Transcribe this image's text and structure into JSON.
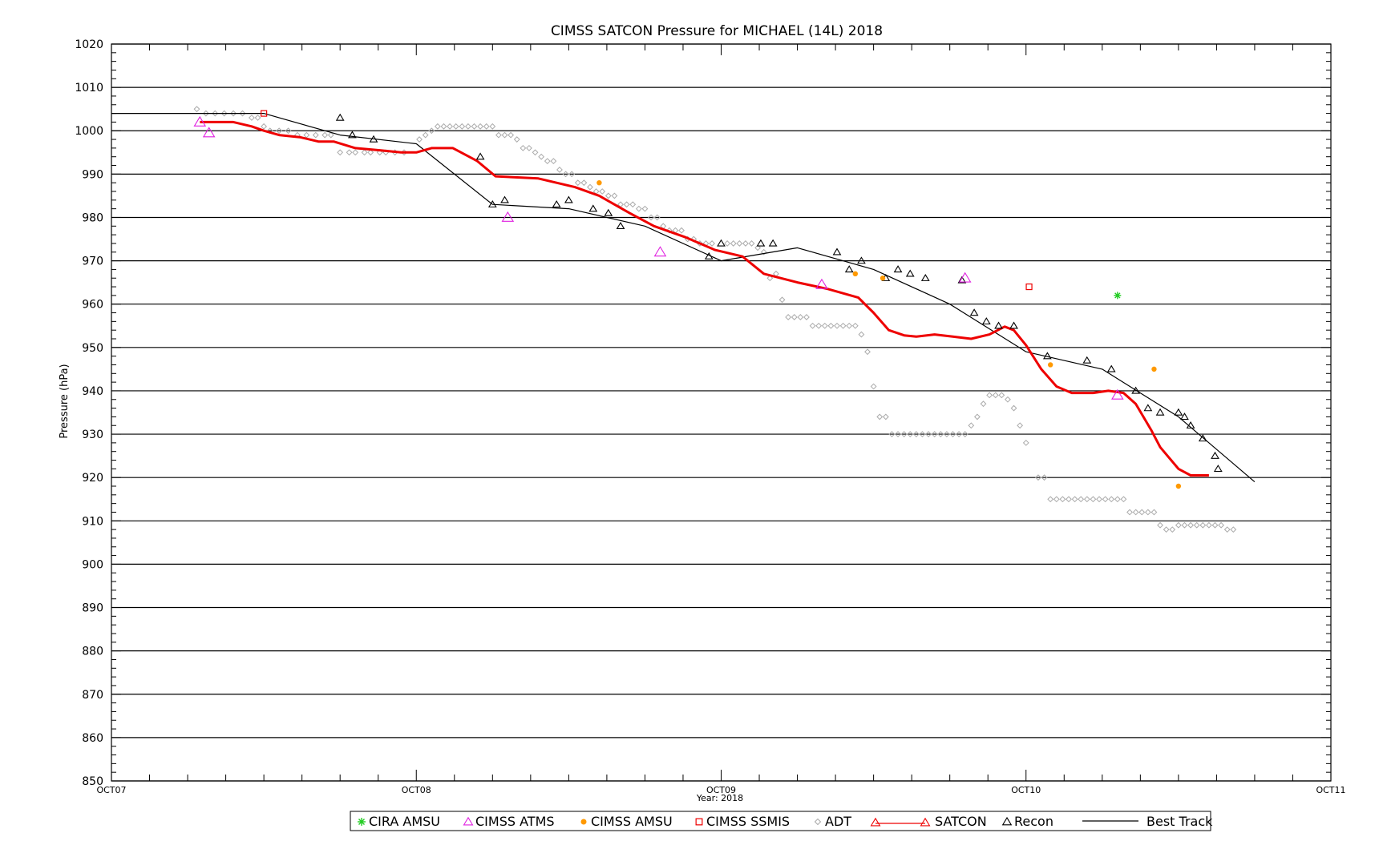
{
  "chart_data": {
    "type": "line",
    "title": "CIMSS SATCON Pressure for MICHAEL (14L) 2018",
    "ylabel": "Pressure (hPa)",
    "xlabel": "Year: 2018",
    "x_units": "days since OCT07 00Z",
    "xlim": [
      0,
      4
    ],
    "ylim": [
      850,
      1020
    ],
    "y_ticks": [
      850,
      860,
      870,
      880,
      890,
      900,
      910,
      920,
      930,
      940,
      950,
      960,
      970,
      980,
      990,
      1000,
      1010,
      1020
    ],
    "x_ticks": [
      {
        "x": 0,
        "label": "OCT07"
      },
      {
        "x": 1,
        "label": "OCT08"
      },
      {
        "x": 2,
        "label": "OCT09"
      },
      {
        "x": 3,
        "label": "OCT10"
      },
      {
        "x": 4,
        "label": "OCT11"
      }
    ],
    "grid": "horizontal",
    "legend_position": "bottom",
    "series": [
      {
        "name": "CIRA AMSU",
        "marker": "asterisk",
        "color": "#22cc22",
        "points": [
          [
            3.3,
            962
          ]
        ]
      },
      {
        "name": "CIMSS ATMS",
        "marker": "triangle",
        "color": "#e020e0",
        "points": [
          [
            0.29,
            1002
          ],
          [
            0.32,
            999.5
          ],
          [
            1.3,
            980
          ],
          [
            1.8,
            972
          ],
          [
            2.33,
            964.5
          ],
          [
            2.8,
            966
          ],
          [
            3.3,
            939
          ]
        ]
      },
      {
        "name": "CIMSS AMSU",
        "marker": "dot",
        "color": "#ff9900",
        "points": [
          [
            1.6,
            988
          ],
          [
            2.44,
            967
          ],
          [
            2.53,
            966
          ],
          [
            3.08,
            946
          ],
          [
            3.42,
            945
          ],
          [
            3.5,
            918
          ]
        ]
      },
      {
        "name": "CIMSS SSMIS",
        "marker": "square",
        "color": "#ee0000",
        "points": [
          [
            0.5,
            1004
          ],
          [
            3.01,
            964
          ]
        ]
      },
      {
        "name": "ADT",
        "marker": "diamond",
        "color": "#aaaaaa",
        "points": [
          [
            0.28,
            1005
          ],
          [
            0.31,
            1004
          ],
          [
            0.34,
            1004
          ],
          [
            0.37,
            1004
          ],
          [
            0.4,
            1004
          ],
          [
            0.43,
            1004
          ],
          [
            0.46,
            1003
          ],
          [
            0.48,
            1003
          ],
          [
            0.5,
            1001
          ],
          [
            0.52,
            1000
          ],
          [
            0.55,
            1000
          ],
          [
            0.58,
            1000
          ],
          [
            0.61,
            999
          ],
          [
            0.64,
            999
          ],
          [
            0.67,
            999
          ],
          [
            0.7,
            999
          ],
          [
            0.72,
            999
          ],
          [
            0.75,
            995
          ],
          [
            0.78,
            995
          ],
          [
            0.8,
            995
          ],
          [
            0.83,
            995
          ],
          [
            0.85,
            995
          ],
          [
            0.88,
            995
          ],
          [
            0.9,
            995
          ],
          [
            0.93,
            995
          ],
          [
            0.96,
            995
          ],
          [
            1.01,
            998
          ],
          [
            1.03,
            999
          ],
          [
            1.05,
            1000
          ],
          [
            1.07,
            1001
          ],
          [
            1.09,
            1001
          ],
          [
            1.11,
            1001
          ],
          [
            1.13,
            1001
          ],
          [
            1.15,
            1001
          ],
          [
            1.17,
            1001
          ],
          [
            1.19,
            1001
          ],
          [
            1.21,
            1001
          ],
          [
            1.23,
            1001
          ],
          [
            1.25,
            1001
          ],
          [
            1.27,
            999
          ],
          [
            1.29,
            999
          ],
          [
            1.31,
            999
          ],
          [
            1.33,
            998
          ],
          [
            1.35,
            996
          ],
          [
            1.37,
            996
          ],
          [
            1.39,
            995
          ],
          [
            1.41,
            994
          ],
          [
            1.43,
            993
          ],
          [
            1.45,
            993
          ],
          [
            1.47,
            991
          ],
          [
            1.49,
            990
          ],
          [
            1.51,
            990
          ],
          [
            1.53,
            988
          ],
          [
            1.55,
            988
          ],
          [
            1.57,
            987
          ],
          [
            1.59,
            986
          ],
          [
            1.61,
            986
          ],
          [
            1.63,
            985
          ],
          [
            1.65,
            985
          ],
          [
            1.67,
            983
          ],
          [
            1.69,
            983
          ],
          [
            1.71,
            983
          ],
          [
            1.73,
            982
          ],
          [
            1.75,
            982
          ],
          [
            1.77,
            980
          ],
          [
            1.79,
            980
          ],
          [
            1.81,
            978
          ],
          [
            1.83,
            977
          ],
          [
            1.85,
            977
          ],
          [
            1.87,
            977
          ],
          [
            1.89,
            975
          ],
          [
            1.91,
            975
          ],
          [
            1.93,
            974
          ],
          [
            1.95,
            974
          ],
          [
            1.97,
            974
          ],
          [
            2.02,
            974
          ],
          [
            2.04,
            974
          ],
          [
            2.06,
            974
          ],
          [
            2.08,
            974
          ],
          [
            2.1,
            974
          ],
          [
            2.12,
            973
          ],
          [
            2.14,
            972
          ],
          [
            2.16,
            966
          ],
          [
            2.18,
            967
          ],
          [
            2.2,
            961
          ],
          [
            2.22,
            957
          ],
          [
            2.24,
            957
          ],
          [
            2.26,
            957
          ],
          [
            2.28,
            957
          ],
          [
            2.3,
            955
          ],
          [
            2.32,
            955
          ],
          [
            2.34,
            955
          ],
          [
            2.36,
            955
          ],
          [
            2.38,
            955
          ],
          [
            2.4,
            955
          ],
          [
            2.42,
            955
          ],
          [
            2.44,
            955
          ],
          [
            2.46,
            953
          ],
          [
            2.48,
            949
          ],
          [
            2.5,
            941
          ],
          [
            2.52,
            934
          ],
          [
            2.54,
            934
          ],
          [
            2.56,
            930
          ],
          [
            2.58,
            930
          ],
          [
            2.6,
            930
          ],
          [
            2.62,
            930
          ],
          [
            2.64,
            930
          ],
          [
            2.66,
            930
          ],
          [
            2.68,
            930
          ],
          [
            2.7,
            930
          ],
          [
            2.72,
            930
          ],
          [
            2.74,
            930
          ],
          [
            2.76,
            930
          ],
          [
            2.78,
            930
          ],
          [
            2.8,
            930
          ],
          [
            2.82,
            932
          ],
          [
            2.84,
            934
          ],
          [
            2.86,
            937
          ],
          [
            2.88,
            939
          ],
          [
            2.9,
            939
          ],
          [
            2.92,
            939
          ],
          [
            2.94,
            938
          ],
          [
            2.96,
            936
          ],
          [
            2.98,
            932
          ],
          [
            3.0,
            928
          ],
          [
            3.04,
            920
          ],
          [
            3.06,
            920
          ],
          [
            3.08,
            915
          ],
          [
            3.1,
            915
          ],
          [
            3.12,
            915
          ],
          [
            3.14,
            915
          ],
          [
            3.16,
            915
          ],
          [
            3.18,
            915
          ],
          [
            3.2,
            915
          ],
          [
            3.22,
            915
          ],
          [
            3.24,
            915
          ],
          [
            3.26,
            915
          ],
          [
            3.28,
            915
          ],
          [
            3.3,
            915
          ],
          [
            3.32,
            915
          ],
          [
            3.34,
            912
          ],
          [
            3.36,
            912
          ],
          [
            3.38,
            912
          ],
          [
            3.4,
            912
          ],
          [
            3.42,
            912
          ],
          [
            3.44,
            909
          ],
          [
            3.46,
            908
          ],
          [
            3.48,
            908
          ],
          [
            3.5,
            909
          ],
          [
            3.52,
            909
          ],
          [
            3.54,
            909
          ],
          [
            3.56,
            909
          ],
          [
            3.58,
            909
          ],
          [
            3.6,
            909
          ],
          [
            3.62,
            909
          ],
          [
            3.64,
            909
          ],
          [
            3.66,
            908
          ],
          [
            3.68,
            908
          ]
        ]
      },
      {
        "name": "SATCON",
        "marker": "line",
        "color": "#ee0000",
        "points": [
          [
            0.29,
            1002
          ],
          [
            0.4,
            1002
          ],
          [
            0.46,
            1001
          ],
          [
            0.5,
            1000
          ],
          [
            0.55,
            999
          ],
          [
            0.62,
            998.5
          ],
          [
            0.68,
            997.5
          ],
          [
            0.73,
            997.5
          ],
          [
            0.8,
            996
          ],
          [
            0.88,
            995.5
          ],
          [
            0.95,
            995
          ],
          [
            1.0,
            995
          ],
          [
            1.05,
            996
          ],
          [
            1.12,
            996
          ],
          [
            1.2,
            993
          ],
          [
            1.26,
            989.5
          ],
          [
            1.4,
            989
          ],
          [
            1.52,
            987
          ],
          [
            1.6,
            985
          ],
          [
            1.7,
            981
          ],
          [
            1.78,
            978
          ],
          [
            1.88,
            975.5
          ],
          [
            1.98,
            972.5
          ],
          [
            2.07,
            971
          ],
          [
            2.14,
            967
          ],
          [
            2.25,
            965
          ],
          [
            2.35,
            963.5
          ],
          [
            2.45,
            961.5
          ],
          [
            2.5,
            958
          ],
          [
            2.55,
            954
          ],
          [
            2.6,
            952.8
          ],
          [
            2.64,
            952.5
          ],
          [
            2.7,
            953
          ],
          [
            2.76,
            952.5
          ],
          [
            2.82,
            952
          ],
          [
            2.88,
            953
          ],
          [
            2.93,
            954.8
          ],
          [
            2.96,
            954
          ],
          [
            3.0,
            950.5
          ],
          [
            3.05,
            945
          ],
          [
            3.1,
            941
          ],
          [
            3.15,
            939.5
          ],
          [
            3.22,
            939.5
          ],
          [
            3.27,
            940
          ],
          [
            3.32,
            939.5
          ],
          [
            3.36,
            937
          ],
          [
            3.41,
            931
          ],
          [
            3.44,
            927
          ],
          [
            3.5,
            922
          ],
          [
            3.54,
            920.5
          ],
          [
            3.6,
            920.5
          ]
        ]
      },
      {
        "name": "Recon",
        "marker": "triangle",
        "color": "#000000",
        "points": [
          [
            0.75,
            1003
          ],
          [
            0.79,
            999
          ],
          [
            0.86,
            998
          ],
          [
            1.21,
            994
          ],
          [
            1.25,
            983
          ],
          [
            1.29,
            984
          ],
          [
            1.46,
            983
          ],
          [
            1.5,
            984
          ],
          [
            1.58,
            982
          ],
          [
            1.63,
            981
          ],
          [
            1.67,
            978
          ],
          [
            1.96,
            971
          ],
          [
            2.0,
            974
          ],
          [
            2.13,
            974
          ],
          [
            2.17,
            974
          ],
          [
            2.38,
            972
          ],
          [
            2.42,
            968
          ],
          [
            2.46,
            970
          ],
          [
            2.54,
            966
          ],
          [
            2.58,
            968
          ],
          [
            2.62,
            967
          ],
          [
            2.67,
            966
          ],
          [
            2.79,
            965.5
          ],
          [
            2.83,
            958
          ],
          [
            2.87,
            956
          ],
          [
            2.91,
            955
          ],
          [
            2.96,
            955
          ],
          [
            3.07,
            948
          ],
          [
            3.2,
            947
          ],
          [
            3.28,
            945
          ],
          [
            3.36,
            940
          ],
          [
            3.4,
            936
          ],
          [
            3.44,
            935
          ],
          [
            3.5,
            935
          ],
          [
            3.52,
            934
          ],
          [
            3.54,
            932
          ],
          [
            3.58,
            929
          ],
          [
            3.62,
            925
          ],
          [
            3.63,
            922
          ]
        ]
      },
      {
        "name": "Best Track",
        "marker": "line",
        "color": "#000000",
        "points": [
          [
            0.0,
            1004
          ],
          [
            0.5,
            1004
          ],
          [
            0.75,
            999
          ],
          [
            1.0,
            997
          ],
          [
            1.25,
            983
          ],
          [
            1.5,
            982
          ],
          [
            1.75,
            978
          ],
          [
            2.0,
            970
          ],
          [
            2.25,
            973
          ],
          [
            2.5,
            968
          ],
          [
            2.75,
            960
          ],
          [
            3.0,
            949
          ],
          [
            3.25,
            945
          ],
          [
            3.5,
            934
          ],
          [
            3.75,
            919
          ]
        ]
      }
    ]
  }
}
